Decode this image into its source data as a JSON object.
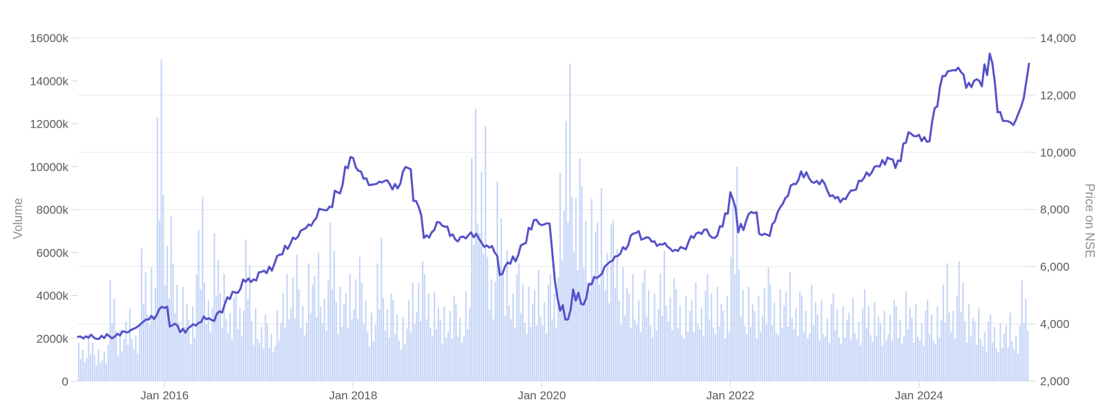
{
  "chart_data": {
    "type": "bar+line combo (dual axis stock chart)",
    "title": "",
    "x_axis": {
      "tick_labels": [
        "Jan 2016",
        "Jan 2018",
        "Jan 2020",
        "Jan 2022",
        "Jan 2024"
      ],
      "tick_month_offsets": [
        11,
        35,
        59,
        83,
        107
      ],
      "start_month": "2015-02",
      "end_month": "2025-03",
      "cadence": "monthly (values estimated from weekly chart pixels)"
    },
    "left_axis": {
      "title": "Volume",
      "unit": "k",
      "min": 0,
      "max": 16000,
      "tick_step": 2000,
      "tick_labels_top_to_bottom": [
        "16000k",
        "14000k",
        "12000k",
        "10000k",
        "8000k",
        "6000k",
        "4000k",
        "2000k",
        "0"
      ]
    },
    "right_axis": {
      "title": "Price on NSE",
      "min": 2000,
      "max": 14000,
      "tick_step": 2000,
      "tick_labels_top_to_bottom": [
        "14,000",
        "12,000",
        "10,000",
        "8,000",
        "6,000",
        "4,000",
        "2,000"
      ]
    },
    "grid": {
      "horizontal": true,
      "aligned_to": "right_axis",
      "color": "#e7e7e7"
    },
    "legend": {
      "visible": false
    },
    "series": [
      {
        "name": "Volume",
        "type": "bar",
        "axis": "left",
        "color": "#c6d6f7",
        "values_unit": "k (thousands)",
        "values": [
          1800,
          2200,
          1500,
          1700,
          4700,
          2400,
          3400,
          2600,
          6200,
          5300,
          15000,
          7700,
          5500,
          4400,
          3500,
          8600,
          4600,
          6900,
          5000,
          3900,
          4200,
          6600,
          3400,
          3100,
          2700,
          3300,
          5000,
          5900,
          4300,
          5500,
          6000,
          4700,
          7400,
          4400,
          5000,
          5800,
          4600,
          3200,
          6700,
          4100,
          3800,
          3000,
          4600,
          5600,
          5000,
          4200,
          3500,
          4000,
          3600,
          4200,
          12700,
          11900,
          5800,
          9300,
          6100,
          5000,
          5500,
          4400,
          5200,
          4500,
          5000,
          9700,
          14800,
          10400,
          9100,
          8500,
          9000,
          7300,
          7500,
          5300,
          5000,
          4600,
          5200,
          4100,
          6100,
          4800,
          4300,
          4000,
          4600,
          4200,
          5000,
          4400,
          4000,
          10000,
          5200,
          4400,
          4000,
          5300,
          4500,
          4300,
          5100,
          4200,
          4000,
          4500,
          3800,
          3600,
          4100,
          3500,
          3900,
          3400,
          4300,
          3700,
          3300,
          3800,
          3500,
          4200,
          3600,
          3300,
          3800,
          3500,
          5500,
          4000,
          5600,
          3600,
          3400,
          2800,
          3100,
          2700,
          3200,
          2600,
          4700,
          3900
        ]
      },
      {
        "name": "Price on NSE",
        "type": "line",
        "axis": "right",
        "color": "#5551c8",
        "values": [
          3550,
          3560,
          3520,
          3580,
          3560,
          3650,
          3720,
          3820,
          4000,
          4150,
          4300,
          4550,
          3950,
          3700,
          3840,
          3940,
          4250,
          4130,
          4440,
          4930,
          5100,
          5550,
          5460,
          5800,
          5770,
          6110,
          6430,
          6790,
          7050,
          7350,
          7600,
          8000,
          8100,
          8600,
          9500,
          9800,
          9330,
          8850,
          8900,
          9000,
          8700,
          8900,
          9450,
          8300,
          7000,
          7200,
          7550,
          7400,
          6950,
          7050,
          7200,
          6980,
          6740,
          6500,
          5750,
          6100,
          6400,
          6830,
          7630,
          7450,
          7500,
          4900,
          4150,
          5200,
          4700,
          5400,
          5600,
          6000,
          6200,
          6450,
          6750,
          7180,
          6980,
          6870,
          6790,
          6700,
          6590,
          6650,
          7070,
          7200,
          7300,
          7000,
          7400,
          8600,
          7200,
          7600,
          7870,
          7100,
          7070,
          7900,
          8400,
          8890,
          9330,
          9100,
          9000,
          8900,
          8500,
          8250,
          8530,
          8700,
          9100,
          9300,
          9500,
          9820,
          9450,
          10300,
          10650,
          10610,
          10370,
          11550,
          12670,
          12850,
          12960,
          12250,
          12500,
          12310,
          13450,
          11400,
          11100,
          10950,
          11600,
          13100
        ]
      }
    ],
    "style": {
      "background": "#ffffff",
      "bar_color": "#c6d6f7",
      "line_color": "#5551c8",
      "grid_color": "#e7e7e7",
      "tick_mark_color": "#d6d6d6",
      "tick_text_color": "#595959",
      "axis_title_color": "#8e8e8e"
    }
  }
}
